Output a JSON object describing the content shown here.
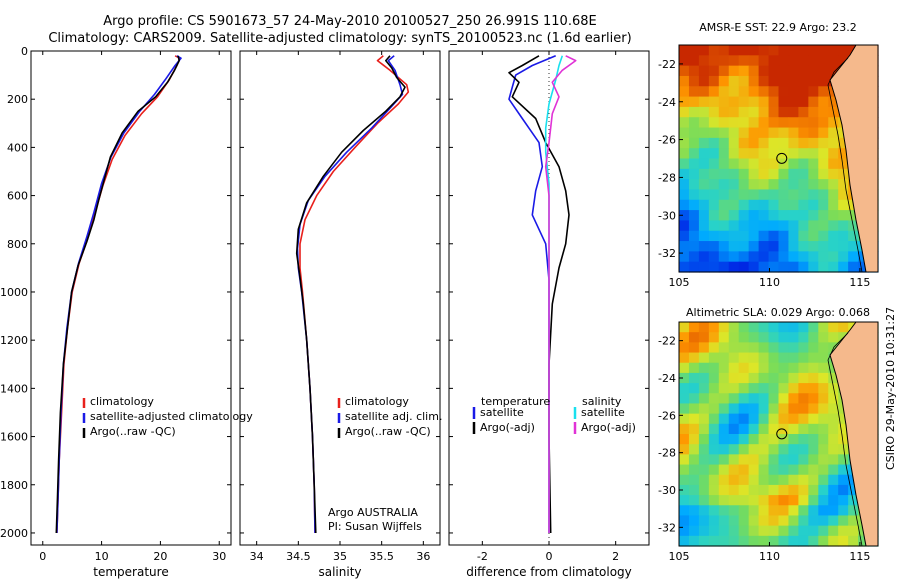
{
  "figure": {
    "title_line1": "Argo profile: CS 5901673_57 24-May-2010 20100527_250 26.991S 110.68E",
    "title_line2": "Climatology: CARS2009. Satellite-adjusted climatology: synTS_20100523.nc (1.6d earlier)",
    "side_label": "CSIRO 29-May-2010 10:31:27"
  },
  "colors": {
    "climatology": "#e8201c",
    "satellite": "#1a1ae6",
    "argo": "#000000",
    "salinity_satellite": "#19e0ee",
    "salinity_argo": "#e033d6",
    "land": "#f5b98c"
  },
  "chart_data": [
    {
      "type": "line",
      "id": "temperature",
      "xlabel": "temperature",
      "xlim": [
        -2,
        32
      ],
      "ylim": [
        2050,
        0
      ],
      "xticks": [
        0,
        10,
        20,
        30
      ],
      "xticklabels": [
        "0",
        "10",
        "20",
        "30"
      ],
      "yticks": [
        0,
        200,
        400,
        600,
        800,
        1000,
        1200,
        1400,
        1600,
        1800,
        2000
      ],
      "yticklabels": [
        "0",
        "200",
        "400",
        "600",
        "800",
        "1000",
        "1200",
        "1400",
        "1600",
        "1800",
        "2000"
      ],
      "legend": {
        "position": "lower-right",
        "entries": [
          "climatology",
          "satellite-adjusted climatology",
          "Argo(..raw -QC)"
        ]
      },
      "series": [
        {
          "name": "climatology",
          "color_key": "climatology",
          "points": [
            [
              22.5,
              20
            ],
            [
              23.3,
              30
            ],
            [
              22.8,
              60
            ],
            [
              21.5,
              120
            ],
            [
              19.5,
              190
            ],
            [
              16.8,
              260
            ],
            [
              14.0,
              350
            ],
            [
              11.8,
              450
            ],
            [
              10.2,
              560
            ],
            [
              8.8,
              680
            ],
            [
              7.6,
              780
            ],
            [
              6.2,
              880
            ],
            [
              5.0,
              1000
            ],
            [
              4.2,
              1150
            ],
            [
              3.6,
              1300
            ],
            [
              3.2,
              1500
            ],
            [
              2.8,
              1700
            ],
            [
              2.6,
              1850
            ],
            [
              2.4,
              2000
            ]
          ]
        },
        {
          "name": "satellite-adjusted climatology",
          "color_key": "satellite",
          "points": [
            [
              22.8,
              20
            ],
            [
              23.5,
              30
            ],
            [
              22.5,
              60
            ],
            [
              20.8,
              120
            ],
            [
              19.0,
              180
            ],
            [
              16.5,
              250
            ],
            [
              13.8,
              340
            ],
            [
              11.6,
              440
            ],
            [
              10.0,
              550
            ],
            [
              8.7,
              670
            ],
            [
              7.5,
              770
            ],
            [
              6.1,
              880
            ],
            [
              4.9,
              1000
            ],
            [
              4.1,
              1150
            ],
            [
              3.5,
              1300
            ],
            [
              3.1,
              1500
            ],
            [
              2.8,
              1700
            ],
            [
              2.6,
              1850
            ],
            [
              2.4,
              2000
            ]
          ]
        },
        {
          "name": "Argo(..raw -QC)",
          "color_key": "argo",
          "points": [
            [
              23.0,
              20
            ],
            [
              23.2,
              40
            ],
            [
              22.4,
              80
            ],
            [
              21.2,
              130
            ],
            [
              19.2,
              190
            ],
            [
              16.2,
              250
            ],
            [
              13.5,
              340
            ],
            [
              11.5,
              440
            ],
            [
              10.5,
              530
            ],
            [
              9.5,
              620
            ],
            [
              8.7,
              700
            ],
            [
              7.5,
              790
            ],
            [
              6.0,
              890
            ],
            [
              4.9,
              1000
            ],
            [
              4.2,
              1150
            ],
            [
              3.5,
              1300
            ],
            [
              3.0,
              1500
            ],
            [
              2.7,
              1700
            ],
            [
              2.5,
              1850
            ],
            [
              2.3,
              2000
            ]
          ]
        }
      ]
    },
    {
      "type": "line",
      "id": "salinity",
      "xlabel": "salinity",
      "xlim": [
        33.8,
        36.2
      ],
      "ylim": [
        2050,
        0
      ],
      "xticks": [
        34,
        34.5,
        35,
        35.5,
        36
      ],
      "xticklabels": [
        "34",
        "34.5",
        "35",
        "35.5",
        "36"
      ],
      "legend": {
        "position": "lower-right",
        "entries": [
          "climatology",
          "satellite adj. clim.",
          "Argo(..raw -QC)"
        ]
      },
      "annotation": [
        "Argo AUSTRALIA",
        "PI: Susan Wijffels"
      ],
      "series": [
        {
          "name": "climatology",
          "color_key": "climatology",
          "points": [
            [
              35.52,
              20
            ],
            [
              35.45,
              40
            ],
            [
              35.6,
              80
            ],
            [
              35.8,
              140
            ],
            [
              35.82,
              170
            ],
            [
              35.7,
              220
            ],
            [
              35.45,
              300
            ],
            [
              35.18,
              400
            ],
            [
              34.92,
              500
            ],
            [
              34.72,
              600
            ],
            [
              34.58,
              700
            ],
            [
              34.52,
              800
            ],
            [
              34.52,
              900
            ],
            [
              34.55,
              1000
            ],
            [
              34.6,
              1200
            ],
            [
              34.64,
              1400
            ],
            [
              34.67,
              1600
            ],
            [
              34.69,
              1800
            ],
            [
              34.7,
              2000
            ]
          ]
        },
        {
          "name": "satellite adj. clim.",
          "color_key": "satellite",
          "points": [
            [
              35.65,
              20
            ],
            [
              35.58,
              40
            ],
            [
              35.66,
              80
            ],
            [
              35.72,
              140
            ],
            [
              35.75,
              180
            ],
            [
              35.62,
              230
            ],
            [
              35.38,
              320
            ],
            [
              35.08,
              420
            ],
            [
              34.82,
              520
            ],
            [
              34.62,
              620
            ],
            [
              34.52,
              720
            ],
            [
              34.49,
              820
            ],
            [
              34.5,
              900
            ],
            [
              34.54,
              1000
            ],
            [
              34.6,
              1200
            ],
            [
              34.64,
              1400
            ],
            [
              34.67,
              1600
            ],
            [
              34.69,
              1800
            ],
            [
              34.7,
              2000
            ]
          ]
        },
        {
          "name": "Argo(..raw -QC)",
          "color_key": "argo",
          "points": [
            [
              35.6,
              20
            ],
            [
              35.55,
              40
            ],
            [
              35.62,
              70
            ],
            [
              35.68,
              110
            ],
            [
              35.78,
              150
            ],
            [
              35.72,
              190
            ],
            [
              35.55,
              250
            ],
            [
              35.28,
              330
            ],
            [
              35.02,
              420
            ],
            [
              34.8,
              520
            ],
            [
              34.6,
              630
            ],
            [
              34.5,
              740
            ],
            [
              34.48,
              840
            ],
            [
              34.52,
              940
            ],
            [
              34.56,
              1050
            ],
            [
              34.6,
              1200
            ],
            [
              34.64,
              1400
            ],
            [
              34.67,
              1600
            ],
            [
              34.69,
              1800
            ],
            [
              34.71,
              2000
            ]
          ]
        }
      ]
    },
    {
      "type": "line",
      "id": "difference",
      "xlabel": "difference from climatology",
      "xlim": [
        -3,
        3
      ],
      "ylim": [
        2050,
        0
      ],
      "xticks": [
        -2,
        0,
        2
      ],
      "xticklabels": [
        "-2",
        "0",
        "2"
      ],
      "legend": {
        "position": "lower",
        "temperature_title": "temperature",
        "salinity_title": "salinity",
        "entries": [
          "satellite",
          "Argo(-adj)",
          "satellite",
          "Argo(-adj)"
        ]
      },
      "series": [
        {
          "name": "temperature satellite",
          "color_key": "satellite",
          "points": [
            [
              0.2,
              20
            ],
            [
              -0.5,
              60
            ],
            [
              -1.0,
              100
            ],
            [
              -1.1,
              150
            ],
            [
              -1.2,
              200
            ],
            [
              -0.8,
              280
            ],
            [
              -0.3,
              380
            ],
            [
              -0.2,
              480
            ],
            [
              -0.4,
              580
            ],
            [
              -0.5,
              680
            ],
            [
              -0.1,
              800
            ],
            [
              0.0,
              950
            ],
            [
              0.0,
              1200
            ],
            [
              0.0,
              1600
            ],
            [
              0.0,
              2000
            ]
          ]
        },
        {
          "name": "temperature Argo(-adj)",
          "color_key": "argo",
          "points": [
            [
              -0.3,
              20
            ],
            [
              -0.8,
              60
            ],
            [
              -1.2,
              90
            ],
            [
              -0.9,
              130
            ],
            [
              -1.1,
              190
            ],
            [
              -0.4,
              280
            ],
            [
              -0.1,
              380
            ],
            [
              0.3,
              480
            ],
            [
              0.5,
              580
            ],
            [
              0.6,
              680
            ],
            [
              0.5,
              800
            ],
            [
              0.3,
              900
            ],
            [
              0.1,
              1050
            ],
            [
              0.0,
              1300
            ],
            [
              0.0,
              1600
            ],
            [
              0.05,
              2000
            ]
          ]
        },
        {
          "name": "salinity satellite",
          "color_key": "salinity_satellite",
          "points": [
            [
              0.4,
              20
            ],
            [
              0.3,
              60
            ],
            [
              0.2,
              120
            ],
            [
              0.0,
              220
            ],
            [
              -0.1,
              320
            ],
            [
              -0.1,
              420
            ],
            [
              0.0,
              550
            ],
            [
              0.0,
              700
            ],
            [
              0.0,
              900
            ],
            [
              0.0,
              1200
            ],
            [
              0.0,
              1600
            ],
            [
              0.0,
              2000
            ]
          ]
        },
        {
          "name": "salinity Argo(-adj)",
          "color_key": "salinity_argo",
          "points": [
            [
              0.5,
              20
            ],
            [
              0.8,
              40
            ],
            [
              0.4,
              80
            ],
            [
              0.1,
              130
            ],
            [
              0.3,
              190
            ],
            [
              0.1,
              260
            ],
            [
              0.0,
              380
            ],
            [
              -0.1,
              480
            ],
            [
              0.0,
              600
            ],
            [
              0.0,
              750
            ],
            [
              0.0,
              850
            ],
            [
              0.0,
              1000
            ],
            [
              0.0,
              1300
            ],
            [
              0.0,
              1600
            ],
            [
              0.0,
              2000
            ]
          ]
        }
      ]
    },
    {
      "type": "heatmap",
      "id": "sst-map",
      "title": "AMSR-E SST: 22.9 Argo: 23.2",
      "xlim": [
        105,
        116
      ],
      "ylim": [
        -33,
        -21
      ],
      "xticks": [
        105,
        110,
        115
      ],
      "xticklabels": [
        "105",
        "110",
        "115"
      ],
      "yticks": [
        -22,
        -24,
        -26,
        -28,
        -30,
        -32
      ],
      "yticklabels": [
        "-22",
        "-24",
        "-26",
        "-28",
        "-30",
        "-32"
      ],
      "argo_marker": {
        "lon": 110.68,
        "lat": -26.991
      }
    },
    {
      "type": "heatmap",
      "id": "sla-map",
      "title": "Altimetric SLA: 0.029 Argo: 0.068",
      "xlim": [
        105,
        116
      ],
      "ylim": [
        -33,
        -21
      ],
      "xticks": [
        105,
        110,
        115
      ],
      "xticklabels": [
        "105",
        "110",
        "115"
      ],
      "yticks": [
        -22,
        -24,
        -26,
        -28,
        -30,
        -32
      ],
      "yticklabels": [
        "-22",
        "-24",
        "-26",
        "-28",
        "-30",
        "-32"
      ],
      "argo_marker": {
        "lon": 110.68,
        "lat": -26.991
      }
    }
  ]
}
